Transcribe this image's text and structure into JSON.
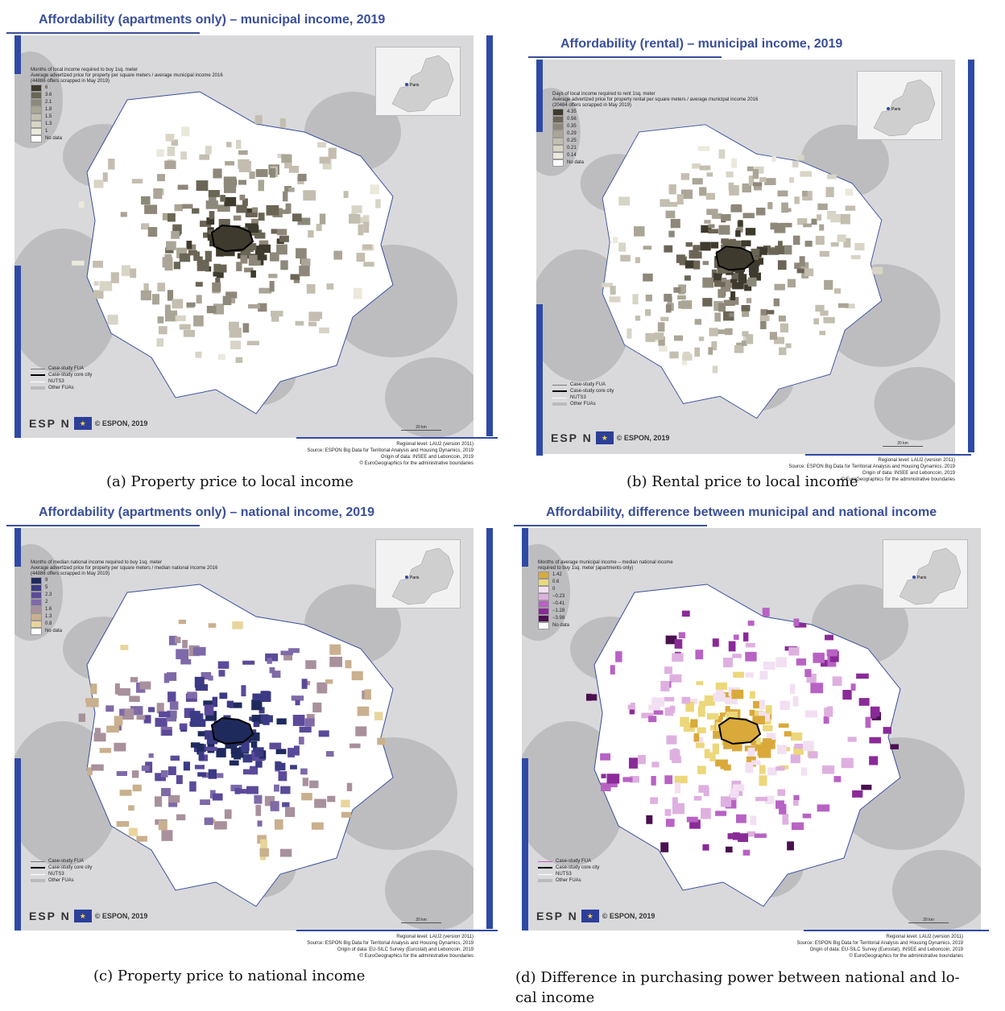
{
  "panels": [
    {
      "title": "Affordability (apartments only) – municipal income, 2019",
      "legend_title": [
        "Months of local income required to buy 1sq. meter",
        "Average advertized price for property per square meters / average municipal income 2016",
        "(44886 offers scrapped in May 2019)"
      ],
      "legend_items": [
        "6",
        "3.6",
        "2.1",
        "1.8",
        "1.5",
        "1.3",
        "1",
        "No data"
      ],
      "legend_colors": [
        "#3f3a2e",
        "#6b6556",
        "#8e887a",
        "#aaa596",
        "#c3beaf",
        "#d8d4c6",
        "#ebe8dc",
        "#ffffff"
      ],
      "line_legend": [
        "Case-study FUA",
        "Case-study core city",
        "NUTS3",
        "Other FUAs"
      ],
      "inset_label": "Paris",
      "logo_text": "ESP N",
      "copyright": "© ESPON, 2019",
      "scale": "20 km",
      "source": [
        "Regional level: LAU2 (version 2011)",
        "Source: ESPON Big Data for Territorial Analysis and Housing Dynamics, 2019",
        "Origin of data: INSEE and Leboncoin, 2019",
        "© EuroGeographics for the administrative boundaries"
      ],
      "caption": "(a)  Property price to local income"
    },
    {
      "title": "Affordability (rental) – municipal income, 2019",
      "legend_title": [
        "Days of local income required to rent 1sq. meter",
        "Average advertized price for property rental per square meters / average municipal income 2016",
        "(20484 offers scrapped in May 2019)"
      ],
      "legend_items": [
        "4.35",
        "0.56",
        "0.35",
        "0.29",
        "0.25",
        "0.21",
        "0.14",
        "No data"
      ],
      "legend_colors": [
        "#3f3a2e",
        "#6b6556",
        "#8e887a",
        "#aaa596",
        "#c3beaf",
        "#d8d4c6",
        "#ebe8dc",
        "#ffffff"
      ],
      "line_legend": [
        "Case-study FUA",
        "Case-study core city",
        "NUTS3",
        "Other FUAs"
      ],
      "inset_label": "Paris",
      "logo_text": "ESP N",
      "copyright": "© ESPON, 2019",
      "scale": "20 km",
      "source": [
        "Regional level: LAU2 (version 2011)",
        "Source: ESPON Big Data for Territorial Analysis and Housing Dynamics, 2019",
        "Origin of data: INSEE and Leboncoin, 2019",
        "© EuroGeographics for the administrative boundaries"
      ],
      "caption": "(b)  Rental price to local income"
    },
    {
      "title": "Affordability (apartments only) – national income, 2019",
      "legend_title": [
        "Months of median national income required to buy 1sq. meter",
        "Average advertized price for property per square meters / median national income 2016",
        "(44886 offers scrapped in May 2019)"
      ],
      "legend_items": [
        "9",
        "5",
        "2.3",
        "2",
        "1.6",
        "1.3",
        "0.8",
        "No data"
      ],
      "legend_colors": [
        "#1f2a5c",
        "#3b3a84",
        "#5b4a9a",
        "#7e6aa8",
        "#a8909c",
        "#c9b08e",
        "#e8d59c",
        "#ffffff"
      ],
      "line_legend": [
        "Case-study FUA",
        "Case-study core city",
        "NUTS3",
        "Other FUAs"
      ],
      "inset_label": "Paris",
      "logo_text": "ESP N",
      "copyright": "© ESPON, 2019",
      "scale": "20 km",
      "source": [
        "Regional level: LAU2 (version 2011)",
        "Source: ESPON Big Data for Territorial Analysis and Housing Dynamics, 2019",
        "Origin of data: EU-SILC Survey (Eurostat) and Leboncoin, 2019",
        "© EuroGeographics for the administrative boundaries"
      ],
      "caption": "(c)  Property price to national income"
    },
    {
      "title": "Affordability, difference between municipal and national income",
      "legend_title": [
        "Months of average municipal income – median national income",
        "required to buy 1sq. meter (apartments only)"
      ],
      "legend_items": [
        "1.42",
        "0.6",
        "0",
        "−0.23",
        "−0.41",
        "−1.28",
        "−3.98",
        "No data"
      ],
      "legend_colors": [
        "#d9a93a",
        "#ecd77a",
        "#f2e0f2",
        "#deb0e0",
        "#b862c4",
        "#8a2a98",
        "#4a1050",
        "#ffffff"
      ],
      "line_legend": [
        "Case-study FUA",
        "Case-study core city",
        "NUTS3",
        "Other FUAs"
      ],
      "inset_label": "Paris",
      "logo_text": "ESP N",
      "copyright": "© ESPON, 2019",
      "scale": "20 km",
      "source": [
        "Regional level: LAU2 (version 2011)",
        "Source: ESPON Big Data for Territorial Analysis and Housing Dynamics, 2019",
        "Origin of data: EU-SILC Survey (Eurostat), INSEE and Leboncoin, 2019",
        "© EuroGeographics for the administrative boundaries"
      ],
      "caption": "(d)  Difference in purchasing power between national and lo-",
      "caption_line2": "cal income"
    }
  ]
}
